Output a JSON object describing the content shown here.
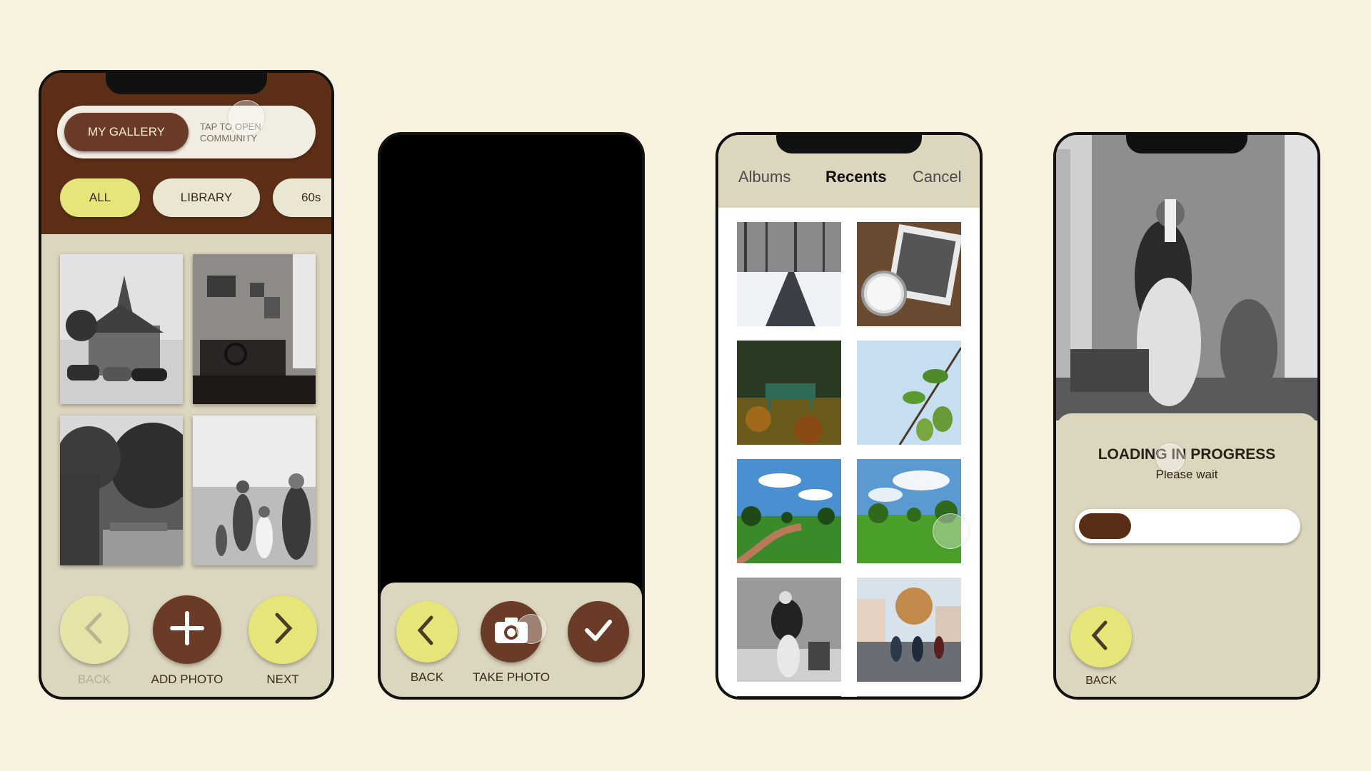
{
  "colors": {
    "background": "#f8f1e0",
    "brown": "#5d2f17",
    "cream": "#ddd6bf",
    "yellow": "#e6e57a",
    "pale_yellow": "#e6e3a8"
  },
  "screen1": {
    "tabs": {
      "active": "MY GALLERY",
      "inactive": "TAP TO OPEN COMMUNITY"
    },
    "filters": [
      "ALL",
      "LIBRARY",
      "60s"
    ],
    "photos": [
      "church-with-old-cars",
      "vintage-office-room",
      "garden-path-trees",
      "family-in-field"
    ],
    "buttons": {
      "back": "BACK",
      "add": "ADD PHOTO",
      "next": "NEXT"
    }
  },
  "screen2": {
    "buttons": {
      "back": "BACK",
      "take": "TAKE PHOTO"
    }
  },
  "screen3": {
    "tabs": {
      "albums": "Albums",
      "recents": "Recents",
      "cancel": "Cancel"
    },
    "thumbnails": [
      "snowy-road",
      "pocket-watch-photo",
      "park-bench-autumn",
      "green-pears-branch",
      "park-path-sky",
      "green-park-field",
      "woman-bw-portrait",
      "cyclists-street"
    ]
  },
  "screen4": {
    "title": "LOADING IN PROGRESS",
    "subtitle": "Please wait",
    "progress": 0.24,
    "back": "BACK"
  }
}
